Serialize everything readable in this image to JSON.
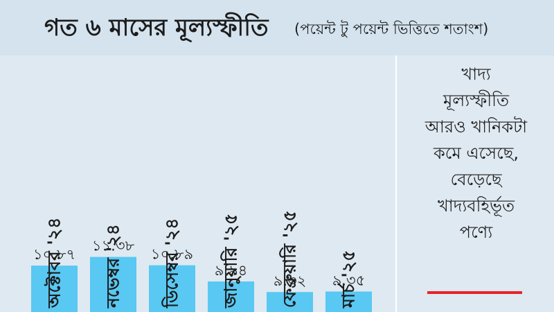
{
  "header": {
    "title": "গত ৬ মাসের মূল্যস্ফীতি",
    "subtitle": "(পয়েন্ট টু পয়েন্ট ভিত্তিতে শতাংশ)"
  },
  "note": {
    "lines": [
      "খাদ্য",
      "মূল্যস্ফীতি",
      "আরও খানিকটা",
      "কমে এসেছে,",
      "বেড়েছে",
      "খাদ্যবহির্ভূত",
      "পণ্যে"
    ]
  },
  "colors": {
    "bar": "#59c8f3",
    "background": "#dfe9f1",
    "accent_rule": "#e8232a"
  },
  "chart_data": {
    "type": "bar",
    "categories": [
      "অক্টোবর '২৪",
      "নভেম্বর '২৪",
      "ডিসেম্বর '২৪",
      "জানুয়ারি '২৫",
      "ফেব্রুয়ারি '২৫",
      "মার্চ '২৫"
    ],
    "values": [
      10.87,
      11.38,
      10.89,
      9.94,
      9.32,
      9.35
    ],
    "value_labels": [
      "১০.৮৭",
      "১১.৩৮",
      "১০.৮৯",
      "৯.৯৪",
      "৯.৩২",
      "৯.৩৫"
    ],
    "grid": false,
    "legend": "none"
  }
}
